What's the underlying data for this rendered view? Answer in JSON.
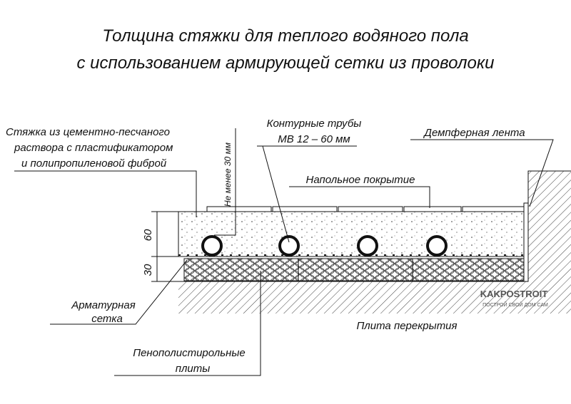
{
  "title": {
    "line1": "Толщина стяжки для теплого водяного пола",
    "line2": "с использованием армирующей сетки из проволоки"
  },
  "labels": {
    "screed": [
      "Стяжка из цементно-песчаного",
      "раствора с пластификатором",
      "и полипропиленовой фиброй"
    ],
    "min_thickness": "Не менее 30 мм",
    "pipes": [
      "Контурные трубы",
      "МВ 12 – 60 мм"
    ],
    "damper": "Демпферная лента",
    "floor_cover": "Напольное покрытие",
    "dim_60": "60",
    "dim_30": "30",
    "mesh": [
      "Арматурная",
      "сетка"
    ],
    "insulation": [
      "Пенополистирольные",
      "плиты"
    ],
    "slab": "Плита перекрытия"
  },
  "watermark": {
    "brand": "KAKPOSTROIT",
    "slogan": "ПОСТРОЙ СВОЙ ДОМ САМ"
  }
}
